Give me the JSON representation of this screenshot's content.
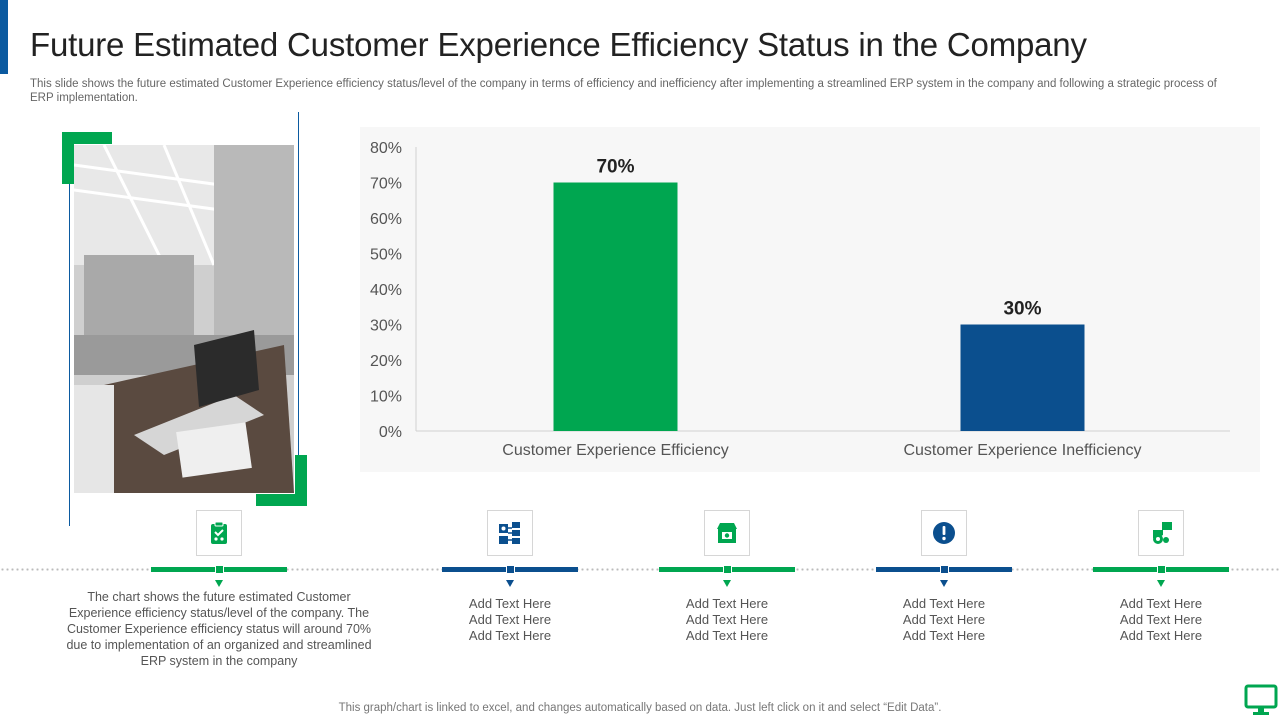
{
  "slide": {
    "title": "Future Estimated Customer Experience Efficiency Status in the Company",
    "subtitle": "This slide shows the future estimated Customer Experience efficiency status/level of the company in terms of efficiency and inefficiency after implementing a streamlined ERP system in the company and following a strategic process of ERP implementation.",
    "footer_note": "This graph/chart is linked to excel,  and changes automatically based on data. Just left click on it and select “Edit Data”."
  },
  "chart_data": {
    "type": "bar",
    "categories": [
      "Customer Experience Efficiency",
      "Customer Experience Inefficiency"
    ],
    "values": [
      70,
      30
    ],
    "data_labels": [
      "70%",
      "30%"
    ],
    "bar_colors": [
      "#00a650",
      "#0b4f8e"
    ],
    "ylim": [
      0,
      80
    ],
    "yticks": [
      0,
      10,
      20,
      30,
      40,
      50,
      60,
      70,
      80
    ],
    "ytick_labels": [
      "0%",
      "10%",
      "20%",
      "30%",
      "40%",
      "50%",
      "60%",
      "70%",
      "80%"
    ],
    "title": "",
    "xlabel": "",
    "ylabel": "",
    "grid": false
  },
  "timeline": {
    "items": [
      {
        "icon": "clipboard-icon",
        "color": "green",
        "text": "The chart shows the future estimated Customer Experience efficiency status/level of the company. The Customer Experience efficiency status will around 70% due to implementation of an organized and streamlined ERP system in the company"
      },
      {
        "icon": "network-icon",
        "color": "blue",
        "lines": [
          "Add Text Here",
          "Add Text Here",
          "Add Text Here"
        ]
      },
      {
        "icon": "shop-icon",
        "color": "green",
        "lines": [
          "Add Text Here",
          "Add Text Here",
          "Add Text Here"
        ]
      },
      {
        "icon": "alert-icon",
        "color": "blue",
        "lines": [
          "Add Text Here",
          "Add Text Here",
          "Add Text Here"
        ]
      },
      {
        "icon": "gear-hand-icon",
        "color": "green",
        "lines": [
          "Add Text Here",
          "Add Text Here",
          "Add Text Here"
        ]
      }
    ]
  },
  "colors": {
    "accent_green": "#00a650",
    "accent_blue": "#0b4f8e"
  }
}
